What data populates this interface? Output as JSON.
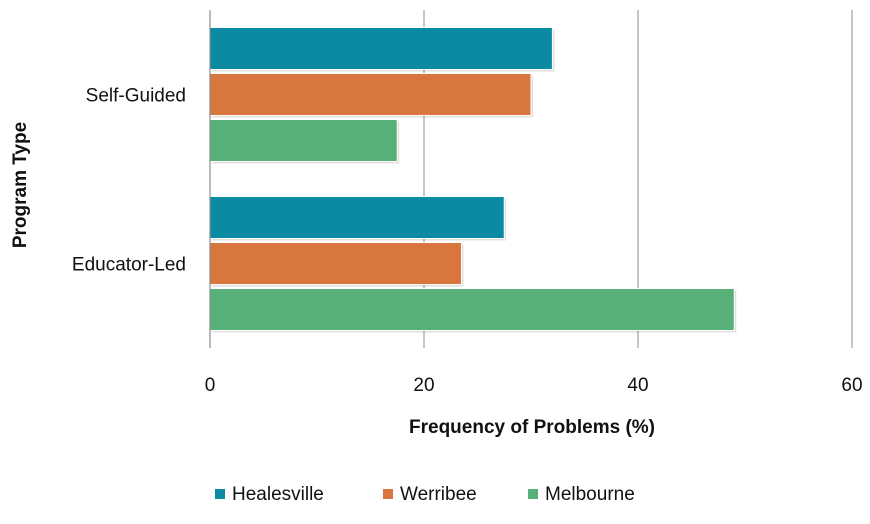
{
  "chart_data": {
    "type": "bar",
    "orientation": "horizontal",
    "title": "",
    "xlabel": "Frequency of Problems (%)",
    "ylabel": "Program Type",
    "xlim": [
      0,
      60
    ],
    "xticks": [
      0,
      20,
      40,
      60
    ],
    "grid": true,
    "legend_position": "bottom",
    "categories": [
      "Self-Guided",
      "Educator-Led"
    ],
    "series": [
      {
        "name": "Healesville",
        "color": "#0a8aa3",
        "values": [
          32,
          27.5
        ]
      },
      {
        "name": "Werribee",
        "color": "#d8763e",
        "values": [
          30,
          23.5
        ]
      },
      {
        "name": "Melbourne",
        "color": "#56b077",
        "values": [
          17.5,
          49
        ]
      }
    ]
  }
}
